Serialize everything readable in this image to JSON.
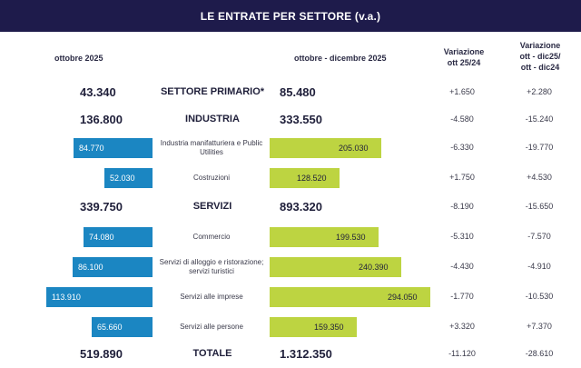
{
  "title": "LE ENTRATE PER SETTORE (v.a.)",
  "headers": {
    "col1": "ottobre 2025",
    "col2": "ottobre  - dicembre 2025",
    "var1": [
      "Variazione",
      "ott 25/24"
    ],
    "var2": [
      "Variazione",
      "ott - dic25/",
      "ott - dic24"
    ]
  },
  "colors": {
    "title_bg": "#1e1b4b",
    "blue_bar": "#1b86c2",
    "green_bar": "#bdd441"
  },
  "chart_data": {
    "type": "bar",
    "categories": [
      "SETTORE PRIMARIO*",
      "INDUSTRIA",
      "Industria manifatturiera e Public Utilities",
      "Costruzioni",
      "SERVIZI",
      "Commercio",
      "Servizi di alloggio e ristorazione; servizi turistici",
      "Servizi alle imprese",
      "Servizi alle persone",
      "TOTALE"
    ],
    "rows": [
      {
        "label": "SETTORE PRIMARIO*",
        "kind": "major",
        "oct": "43.340",
        "oct_dec": "85.480",
        "var1": "+1.650",
        "var2": "+2.280"
      },
      {
        "label": "INDUSTRIA",
        "kind": "major",
        "oct": "136.800",
        "oct_dec": "333.550",
        "var1": "-4.580",
        "var2": "-15.240"
      },
      {
        "label": "Industria manifatturiera e Public Utilities",
        "kind": "sub",
        "oct": "84.770",
        "oct_dec": "205.030",
        "oct_value": 84770,
        "oct_dec_value": 205030,
        "var1": "-6.330",
        "var2": "-19.770"
      },
      {
        "label": "Costruzioni",
        "kind": "sub",
        "oct": "52.030",
        "oct_dec": "128.520",
        "oct_value": 52030,
        "oct_dec_value": 128520,
        "var1": "+1.750",
        "var2": "+4.530"
      },
      {
        "label": "SERVIZI",
        "kind": "major",
        "oct": "339.750",
        "oct_dec": "893.320",
        "var1": "-8.190",
        "var2": "-15.650"
      },
      {
        "label": "Commercio",
        "kind": "sub",
        "oct": "74.080",
        "oct_dec": "199.530",
        "oct_value": 74080,
        "oct_dec_value": 199530,
        "var1": "-5.310",
        "var2": "-7.570"
      },
      {
        "label": "Servizi di alloggio e ristorazione; servizi turistici",
        "kind": "sub",
        "oct": "86.100",
        "oct_dec": "240.390",
        "oct_value": 86100,
        "oct_dec_value": 240390,
        "var1": "-4.430",
        "var2": "-4.910"
      },
      {
        "label": "Servizi alle imprese",
        "kind": "sub",
        "oct": "113.910",
        "oct_dec": "294.050",
        "oct_value": 113910,
        "oct_dec_value": 294050,
        "var1": "-1.770",
        "var2": "-10.530"
      },
      {
        "label": "Servizi alle persone",
        "kind": "sub",
        "oct": "65.660",
        "oct_dec": "159.350",
        "oct_value": 65660,
        "oct_dec_value": 159350,
        "var1": "+3.320",
        "var2": "+7.370"
      },
      {
        "label": "TOTALE",
        "kind": "major",
        "oct": "519.890",
        "oct_dec": "1.312.350",
        "var1": "-11.120",
        "var2": "-28.610"
      }
    ]
  }
}
